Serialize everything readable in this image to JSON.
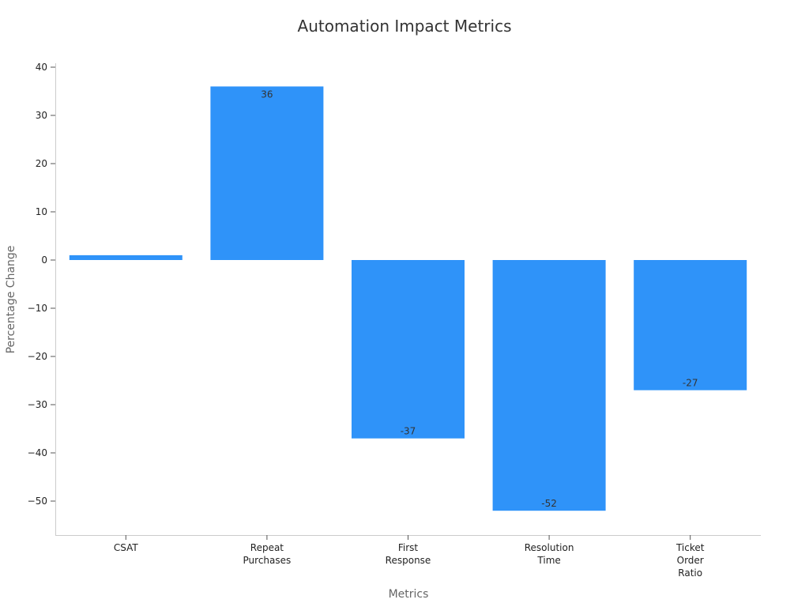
{
  "chart_data": {
    "type": "bar",
    "title": "Automation Impact Metrics",
    "xlabel": "Metrics",
    "ylabel": "Percentage Change",
    "categories": [
      "CSAT",
      "Repeat Purchases",
      "First Response",
      "Resolution Time",
      "Ticket Order Ratio"
    ],
    "category_label_lines": [
      [
        "CSAT"
      ],
      [
        "Repeat",
        "Purchases"
      ],
      [
        "First",
        "Response"
      ],
      [
        "Resolution",
        "Time"
      ],
      [
        "Ticket",
        "Order",
        "Ratio"
      ]
    ],
    "values": [
      1,
      36,
      -37,
      -52,
      -27
    ],
    "data_labels": [
      "",
      "36",
      "-37",
      "-52",
      "-27"
    ],
    "yticks": [
      40,
      30,
      20,
      10,
      0,
      -10,
      -20,
      -30,
      -40,
      -50
    ],
    "ytick_labels": [
      "40",
      "30",
      "20",
      "10",
      "0",
      "−10",
      "−20",
      "−30",
      "−40",
      "−50"
    ],
    "ylim": [
      -57.5,
      41
    ],
    "grid": false,
    "bar_color": "#2f93f9"
  }
}
